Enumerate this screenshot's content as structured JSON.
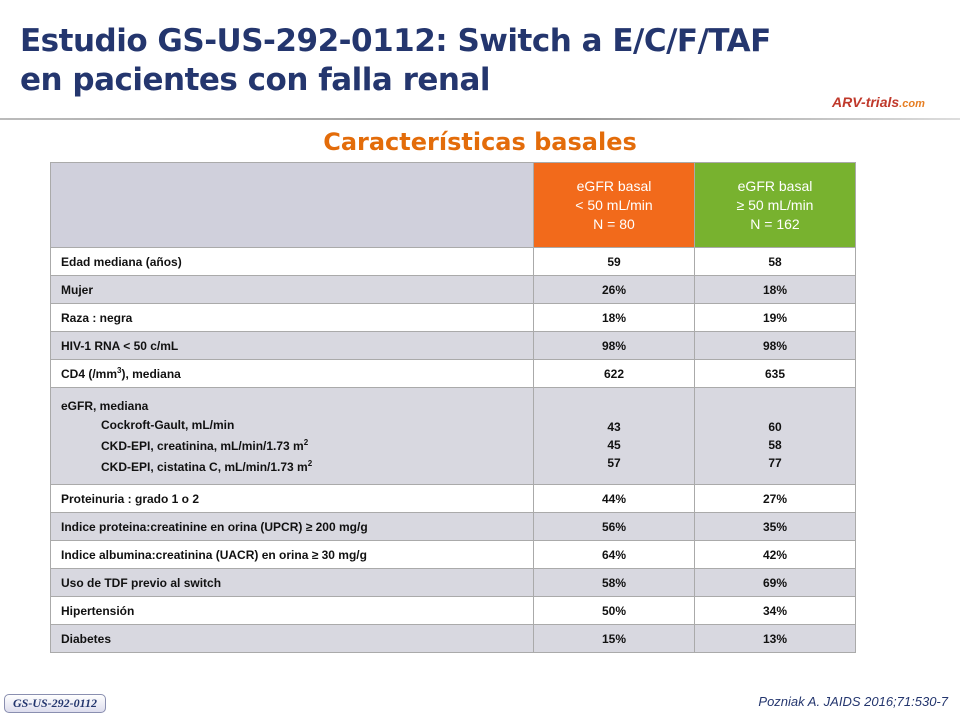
{
  "header": {
    "title_lines": [
      "Estudio GS-US-292-0112: Switch a E/C/F/TAF",
      "en pacientes con falla renal"
    ],
    "logo": [
      "ARV-trials",
      ".com"
    ]
  },
  "subtitle": "Características basales",
  "table": {
    "columns": [
      [
        "eGFR basal",
        "< 50 mL/min",
        "N = 80"
      ],
      [
        "eGFR basal",
        "≥ 50 mL/min",
        "N = 162"
      ]
    ],
    "rows": [
      {
        "label": "Edad mediana  (años)",
        "values": [
          "59",
          "58"
        ]
      },
      {
        "label": "Mujer",
        "values": [
          "26%",
          "18%"
        ]
      },
      {
        "label": "Raza : negra",
        "values": [
          "18%",
          "19%"
        ]
      },
      {
        "label": "HIV-1 RNA < 50 c/mL",
        "values": [
          "98%",
          "98%"
        ]
      },
      {
        "label": "CD4  (/mm",
        "sup": "3",
        "label_end": "), mediana",
        "values": [
          "622",
          "635"
        ]
      },
      {
        "label": "eGFR, mediana",
        "items": [
          {
            "label": "Cockroft-Gault, mL/min",
            "values": [
              "43",
              "60"
            ]
          },
          {
            "label": "CKD-EPI, creatinina, mL/min/1.73 m",
            "sup": "2",
            "values": [
              "45",
              "58"
            ]
          },
          {
            "label": "CKD-EPI, cistatina C, mL/min/1.73 m",
            "sup": "2",
            "values": [
              "57",
              "77"
            ]
          }
        ]
      },
      {
        "label": "Proteinuria  : grado 1 o 2",
        "values": [
          "44%",
          "27%"
        ]
      },
      {
        "label": "Indice proteina:creatinine  en orina (UPCR) ≥ 200 mg/g",
        "values": [
          "56%",
          "35%"
        ]
      },
      {
        "label": "Indice albumina:creatinina  (UACR) en orina  ≥ 30 mg/g",
        "values": [
          "64%",
          "42%"
        ]
      },
      {
        "label": "Uso de TDF previo al switch",
        "values": [
          "58%",
          "69%"
        ]
      },
      {
        "label": "Hipertensión",
        "values": [
          "50%",
          "34%"
        ]
      },
      {
        "label": "Diabetes",
        "values": [
          "15%",
          "13%"
        ]
      }
    ]
  },
  "footer": {
    "badge": "GS-US-292-0112",
    "citation": "Pozniak A. JAIDS 2016;71:530-7"
  }
}
